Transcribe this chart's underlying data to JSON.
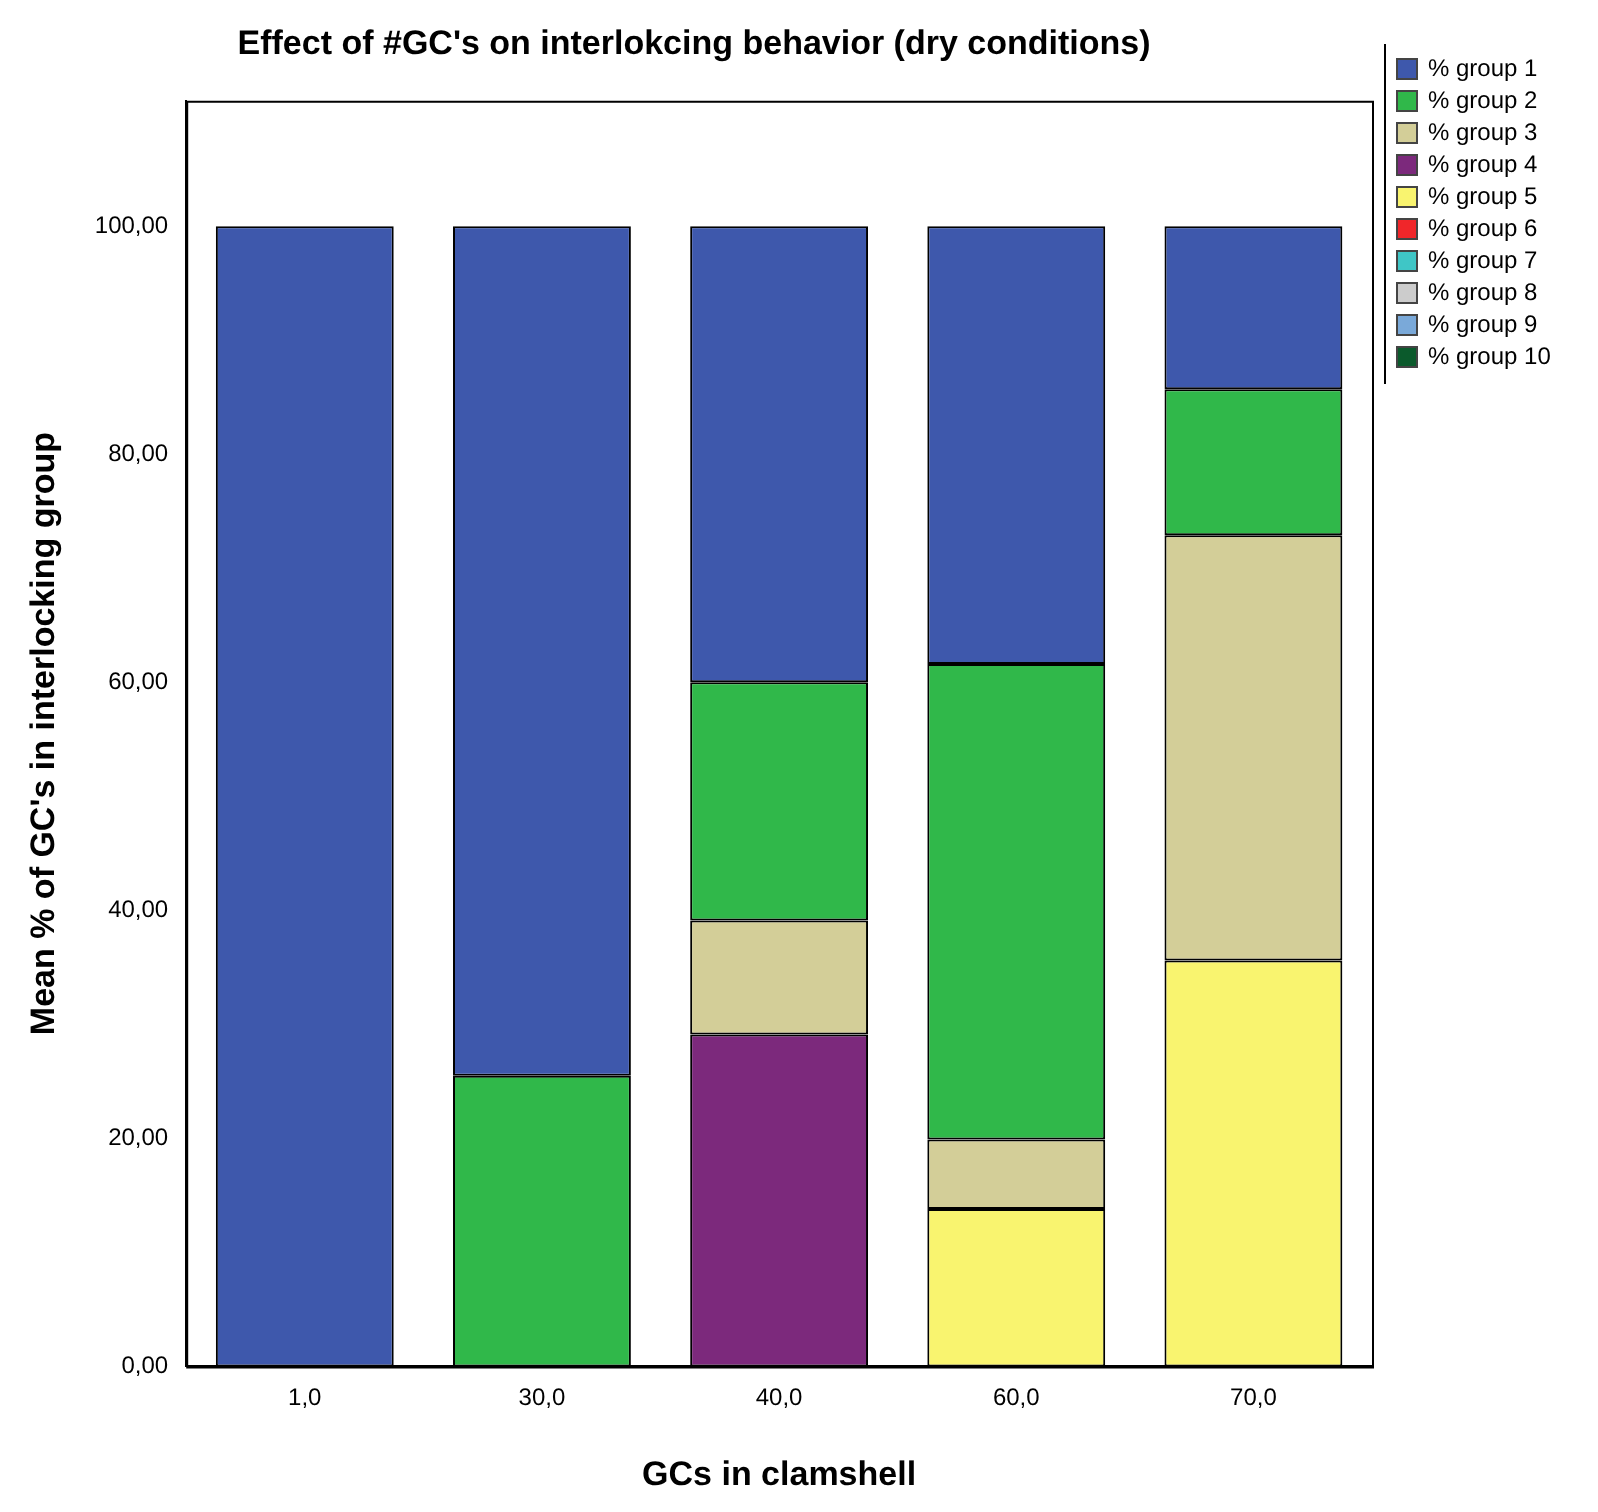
{
  "chart_data": {
    "type": "bar",
    "title": "Effect of #GC's on interlokcing behavior (dry conditions)",
    "xlabel": "GCs in clamshell",
    "ylabel": "Mean % of GC's in interlocking group",
    "categories": [
      "1,0",
      "30,0",
      "40,0",
      "60,0",
      "70,0"
    ],
    "stacked": true,
    "ylim": [
      0,
      111
    ],
    "yticks": [
      {
        "value": 0,
        "label": "0,00"
      },
      {
        "value": 20,
        "label": "20,00"
      },
      {
        "value": 40,
        "label": "40,00"
      },
      {
        "value": 60,
        "label": "60,00"
      },
      {
        "value": 80,
        "label": "80,00"
      },
      {
        "value": 100,
        "label": "100,00"
      }
    ],
    "grid": false,
    "legend": "top right",
    "series": [
      {
        "name": "% group 10",
        "color": "#0b5a2c",
        "values": [
          null,
          null,
          null,
          null,
          null
        ]
      },
      {
        "name": "% group 9",
        "color": "#7aa9d9",
        "values": [
          null,
          null,
          null,
          null,
          null
        ]
      },
      {
        "name": "% group 8",
        "color": "#cccccc",
        "values": [
          null,
          null,
          null,
          null,
          null
        ]
      },
      {
        "name": "% group 7",
        "color": "#3fc6c6",
        "values": [
          null,
          null,
          null,
          null,
          null
        ]
      },
      {
        "name": "% group 6",
        "color": "#f0262a",
        "values": [
          null,
          null,
          null,
          null,
          null
        ]
      },
      {
        "name": "% group 5",
        "color": "#f9f46f",
        "values": [
          null,
          null,
          null,
          13.8,
          35.6
        ]
      },
      {
        "name": "% group 4",
        "color": "#7c297c",
        "values": [
          null,
          null,
          29.1,
          null,
          null
        ]
      },
      {
        "name": "% group 3",
        "color": "#d3ce98",
        "values": [
          null,
          null,
          10.0,
          6.1,
          37.3
        ]
      },
      {
        "name": "% group 2",
        "color": "#30b84a",
        "values": [
          null,
          25.5,
          20.9,
          41.7,
          12.8
        ]
      },
      {
        "name": "% group 1",
        "color": "#3e58ac",
        "values": [
          100,
          74.5,
          40.0,
          38.4,
          14.3
        ]
      }
    ]
  }
}
